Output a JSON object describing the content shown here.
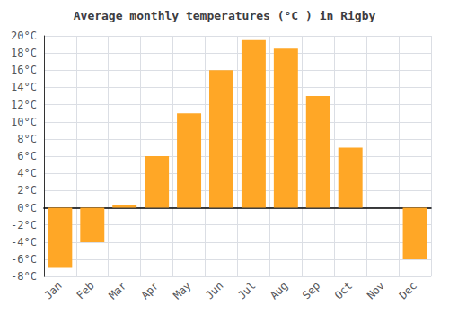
{
  "chart_data": {
    "type": "bar",
    "title": "Average monthly temperatures (°C ) in Rigby",
    "categories": [
      "Jan",
      "Feb",
      "Mar",
      "Apr",
      "May",
      "Jun",
      "Jul",
      "Aug",
      "Sep",
      "Oct",
      "Nov",
      "Dec"
    ],
    "values": [
      -7.0,
      -4.0,
      0.3,
      6.0,
      11.0,
      16.0,
      19.5,
      18.5,
      13.0,
      7.0,
      0.0,
      -6.0
    ],
    "color": "#FFA726",
    "ylim": [
      -8,
      20
    ],
    "yticks": [
      {
        "value": -8,
        "label": "-8°C"
      },
      {
        "value": -6,
        "label": "-6°C"
      },
      {
        "value": -4,
        "label": "-4°C"
      },
      {
        "value": -2,
        "label": "-2°C"
      },
      {
        "value": 0,
        "label": "0°C"
      },
      {
        "value": 2,
        "label": "2°C"
      },
      {
        "value": 4,
        "label": "4°C"
      },
      {
        "value": 6,
        "label": "6°C"
      },
      {
        "value": 8,
        "label": "8°C"
      },
      {
        "value": 10,
        "label": "10°C"
      },
      {
        "value": 12,
        "label": "12°C"
      },
      {
        "value": 14,
        "label": "14°C"
      },
      {
        "value": 16,
        "label": "16°C"
      },
      {
        "value": 18,
        "label": "18°C"
      },
      {
        "value": 20,
        "label": "20°C"
      }
    ],
    "grid": true
  }
}
